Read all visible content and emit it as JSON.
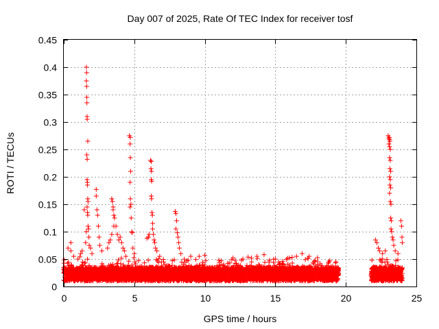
{
  "chart_data": {
    "type": "scatter",
    "title": "Day 007 of 2025, Rate Of TEC Index for receiver tosf",
    "xlabel": "GPS time / hours",
    "ylabel": "ROTI / TECUs",
    "xlim": [
      0,
      25
    ],
    "ylim": [
      0,
      0.45
    ],
    "xticks": [
      0,
      5,
      10,
      15,
      20,
      25
    ],
    "yticks": [
      0,
      0.05,
      0.1,
      0.15,
      0.2,
      0.25,
      0.3,
      0.35,
      0.4,
      0.45
    ],
    "xtick_labels": [
      "0",
      "5",
      "10",
      "15",
      "20",
      "25"
    ],
    "ytick_labels": [
      "0",
      "0.05",
      "0.1",
      "0.15",
      "0.2",
      "0.25",
      "0.3",
      "0.35",
      "0.4",
      "0.45"
    ],
    "grid": true,
    "marker": "+",
    "color": "#ff0000",
    "data_gap_hours": [
      19.5,
      21.8
    ],
    "baseline": {
      "segments": [
        [
          0,
          19.5
        ],
        [
          21.8,
          24.0
        ]
      ],
      "typical_range": [
        0.01,
        0.035
      ],
      "max_background": 0.055
    },
    "points": [
      [
        0.3,
        0.07
      ],
      [
        0.5,
        0.08
      ],
      [
        0.5,
        0.065
      ],
      [
        0.7,
        0.055
      ],
      [
        1.0,
        0.05
      ],
      [
        1.2,
        0.06
      ],
      [
        1.3,
        0.065
      ],
      [
        1.45,
        0.14
      ],
      [
        1.55,
        0.08
      ],
      [
        1.6,
        0.1
      ],
      [
        1.65,
        0.145
      ],
      [
        1.6,
        0.4
      ],
      [
        1.62,
        0.39
      ],
      [
        1.6,
        0.375
      ],
      [
        1.62,
        0.365
      ],
      [
        1.63,
        0.345
      ],
      [
        1.64,
        0.335
      ],
      [
        1.65,
        0.31
      ],
      [
        1.66,
        0.305
      ],
      [
        1.7,
        0.265
      ],
      [
        1.63,
        0.24
      ],
      [
        1.66,
        0.232
      ],
      [
        1.65,
        0.195
      ],
      [
        1.67,
        0.19
      ],
      [
        1.68,
        0.185
      ],
      [
        1.7,
        0.16
      ],
      [
        1.72,
        0.155
      ],
      [
        1.68,
        0.135
      ],
      [
        1.7,
        0.13
      ],
      [
        1.72,
        0.11
      ],
      [
        1.75,
        0.105
      ],
      [
        1.78,
        0.09
      ],
      [
        1.8,
        0.075
      ],
      [
        1.9,
        0.07
      ],
      [
        2.0,
        0.06
      ],
      [
        2.3,
        0.177
      ],
      [
        2.3,
        0.165
      ],
      [
        2.35,
        0.14
      ],
      [
        2.4,
        0.13
      ],
      [
        2.45,
        0.11
      ],
      [
        2.5,
        0.09
      ],
      [
        2.55,
        0.075
      ],
      [
        2.7,
        0.065
      ],
      [
        3.1,
        0.07
      ],
      [
        3.2,
        0.08
      ],
      [
        3.3,
        0.085
      ],
      [
        3.4,
        0.095
      ],
      [
        3.4,
        0.16
      ],
      [
        3.45,
        0.155
      ],
      [
        3.5,
        0.145
      ],
      [
        3.5,
        0.14
      ],
      [
        3.55,
        0.13
      ],
      [
        3.6,
        0.125
      ],
      [
        3.55,
        0.11
      ],
      [
        3.7,
        0.11
      ],
      [
        3.8,
        0.095
      ],
      [
        3.9,
        0.085
      ],
      [
        4.0,
        0.09
      ],
      [
        4.1,
        0.08
      ],
      [
        4.2,
        0.07
      ],
      [
        4.3,
        0.065
      ],
      [
        4.4,
        0.055
      ],
      [
        4.65,
        0.275
      ],
      [
        4.72,
        0.272
      ],
      [
        4.7,
        0.26
      ],
      [
        4.72,
        0.235
      ],
      [
        4.74,
        0.21
      ],
      [
        4.7,
        0.19
      ],
      [
        4.72,
        0.16
      ],
      [
        4.76,
        0.15
      ],
      [
        4.7,
        0.145
      ],
      [
        4.78,
        0.125
      ],
      [
        4.82,
        0.1
      ],
      [
        4.85,
        0.098
      ],
      [
        4.9,
        0.07
      ],
      [
        5.0,
        0.06
      ],
      [
        5.9,
        0.088
      ],
      [
        6.0,
        0.09
      ],
      [
        6.05,
        0.095
      ],
      [
        6.15,
        0.23
      ],
      [
        6.2,
        0.228
      ],
      [
        6.18,
        0.215
      ],
      [
        6.22,
        0.21
      ],
      [
        6.2,
        0.195
      ],
      [
        6.23,
        0.192
      ],
      [
        6.2,
        0.165
      ],
      [
        6.22,
        0.16
      ],
      [
        6.25,
        0.135
      ],
      [
        6.28,
        0.13
      ],
      [
        6.3,
        0.115
      ],
      [
        6.3,
        0.105
      ],
      [
        6.35,
        0.095
      ],
      [
        6.4,
        0.085
      ],
      [
        6.45,
        0.08
      ],
      [
        6.5,
        0.07
      ],
      [
        6.6,
        0.065
      ],
      [
        6.8,
        0.055
      ],
      [
        7.9,
        0.137
      ],
      [
        7.95,
        0.133
      ],
      [
        8.0,
        0.12
      ],
      [
        7.95,
        0.105
      ],
      [
        8.05,
        0.098
      ],
      [
        8.1,
        0.09
      ],
      [
        8.15,
        0.08
      ],
      [
        8.2,
        0.07
      ],
      [
        8.3,
        0.06
      ],
      [
        9.0,
        0.055
      ],
      [
        9.6,
        0.055
      ],
      [
        10.0,
        0.057
      ],
      [
        11.0,
        0.048
      ],
      [
        12.0,
        0.052
      ],
      [
        12.7,
        0.05
      ],
      [
        13.3,
        0.052
      ],
      [
        13.7,
        0.055
      ],
      [
        14.2,
        0.058
      ],
      [
        15.0,
        0.05
      ],
      [
        16.0,
        0.052
      ],
      [
        16.5,
        0.055
      ],
      [
        16.9,
        0.06
      ],
      [
        17.4,
        0.055
      ],
      [
        18.0,
        0.045
      ],
      [
        18.8,
        0.045
      ],
      [
        19.3,
        0.045
      ],
      [
        22.1,
        0.085
      ],
      [
        22.2,
        0.08
      ],
      [
        22.3,
        0.07
      ],
      [
        22.4,
        0.065
      ],
      [
        22.6,
        0.06
      ],
      [
        22.8,
        0.065
      ],
      [
        23.0,
        0.275
      ],
      [
        23.05,
        0.27
      ],
      [
        23.08,
        0.272
      ],
      [
        23.1,
        0.268
      ],
      [
        23.12,
        0.265
      ],
      [
        23.05,
        0.26
      ],
      [
        23.1,
        0.255
      ],
      [
        23.15,
        0.25
      ],
      [
        23.1,
        0.235
      ],
      [
        23.15,
        0.23
      ],
      [
        23.12,
        0.215
      ],
      [
        23.18,
        0.21
      ],
      [
        23.1,
        0.2
      ],
      [
        23.15,
        0.195
      ],
      [
        23.12,
        0.185
      ],
      [
        23.18,
        0.18
      ],
      [
        23.1,
        0.17
      ],
      [
        23.15,
        0.155
      ],
      [
        23.2,
        0.15
      ],
      [
        23.18,
        0.125
      ],
      [
        23.22,
        0.12
      ],
      [
        23.2,
        0.105
      ],
      [
        23.25,
        0.1
      ],
      [
        23.3,
        0.09
      ],
      [
        23.35,
        0.085
      ],
      [
        23.4,
        0.075
      ],
      [
        23.5,
        0.065
      ],
      [
        23.7,
        0.06
      ],
      [
        23.9,
        0.12
      ],
      [
        23.95,
        0.11
      ],
      [
        23.98,
        0.09
      ],
      [
        24.0,
        0.08
      ]
    ]
  }
}
